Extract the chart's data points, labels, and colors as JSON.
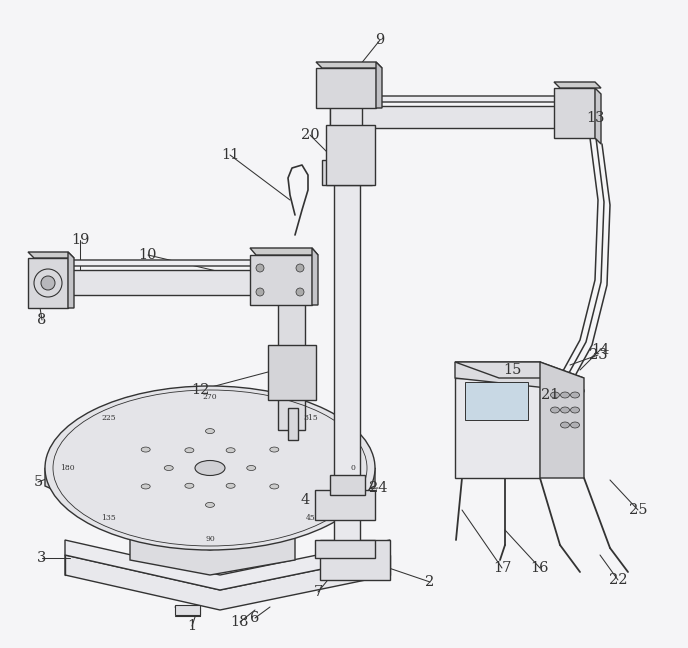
{
  "bg_color": "#f5f5f7",
  "lc": "#333333",
  "lw": 1.0,
  "fig_w": 6.88,
  "fig_h": 6.48
}
